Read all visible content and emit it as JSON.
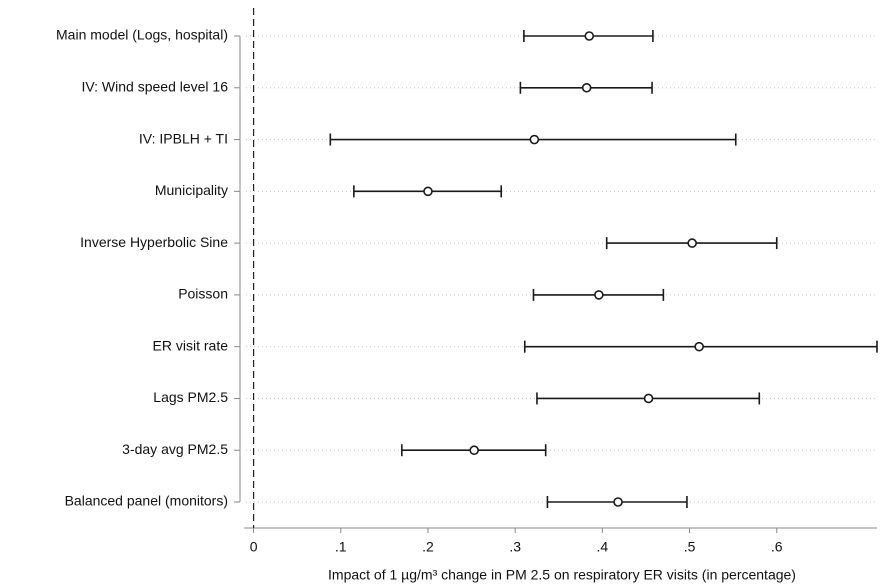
{
  "chart_data": {
    "type": "coefplot",
    "x_label": "Impact of 1 µg/m³ change in PM 2.5 on respiratory ER visits (in percentage)",
    "categories": [
      "Main model (Logs, hospital)",
      "IV: Wind speed level 16",
      "IV: IPBLH + TI",
      "Municipality",
      "Inverse Hyperbolic Sine",
      "Poisson",
      "ER visit rate",
      "Lags PM2.5",
      "3-day avg PM2.5",
      "Balanced panel (monitors)"
    ],
    "values": [
      0.385,
      0.382,
      0.322,
      0.2,
      0.503,
      0.396,
      0.511,
      0.453,
      0.253,
      0.418
    ],
    "lower": [
      0.31,
      0.306,
      0.088,
      0.115,
      0.405,
      0.321,
      0.311,
      0.325,
      0.17,
      0.337
    ],
    "upper": [
      0.458,
      0.457,
      0.553,
      0.284,
      0.6,
      0.47,
      0.715,
      0.58,
      0.335,
      0.497
    ],
    "color": "#1a1a1a",
    "xlim": [
      -0.011,
      0.715
    ],
    "xticks": [
      0,
      {
        "value": 0.1,
        "label": ".1"
      },
      {
        "value": 0.2,
        "label": ".2"
      },
      {
        "value": 0.3,
        "label": ".3"
      },
      {
        "value": 0.4,
        "label": ".4"
      },
      {
        "value": 0.5,
        "label": ".5"
      },
      {
        "value": 0.6,
        "label": ".6"
      }
    ],
    "xline": 0,
    "grid": true
  }
}
